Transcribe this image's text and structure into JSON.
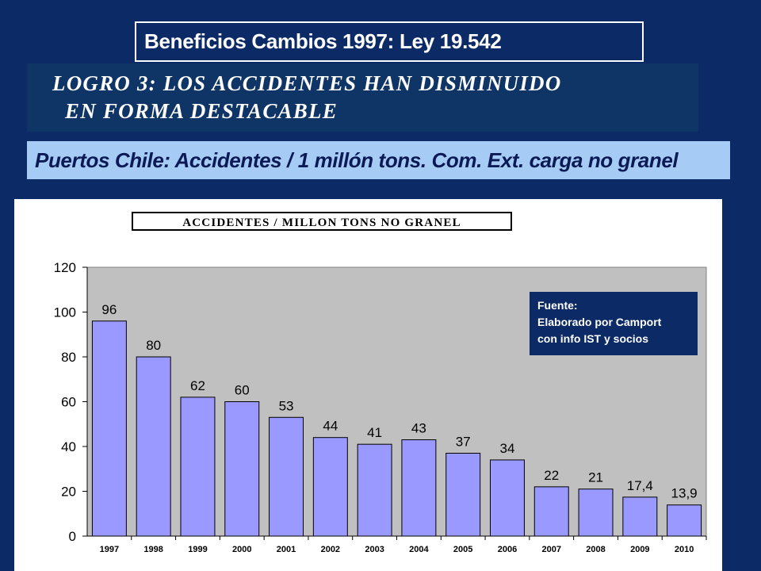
{
  "header": {
    "title": "Beneficios Cambios 1997:   Ley 19.542",
    "logro_line1": "LOGRO 3: LOS ACCIDENTES HAN DISMINUIDO",
    "logro_line2": "EN FORMA DESTACABLE",
    "subtitle": "Puertos Chile: Accidentes / 1 millón tons. Com.  Ext.  carga no granel"
  },
  "source_note": {
    "line1": "Fuente:",
    "line2": "Elaborado por Camport",
    "line3": "con info IST y socios"
  },
  "chart_data": {
    "type": "bar",
    "title": "ACCIDENTES / MILLON TONS NO GRANEL",
    "categories": [
      "1997",
      "1998",
      "1999",
      "2000",
      "2001",
      "2002",
      "2003",
      "2004",
      "2005",
      "2006",
      "2007",
      "2008",
      "2009",
      "2010"
    ],
    "values": [
      96,
      80,
      62,
      60,
      53,
      44,
      41,
      43,
      37,
      34,
      22,
      21,
      17.4,
      13.9
    ],
    "data_labels": [
      "96",
      "80",
      "62",
      "60",
      "53",
      "44",
      "41",
      "43",
      "37",
      "34",
      "22",
      "21",
      "17,4",
      "13,9"
    ],
    "yticks": [
      0,
      20,
      40,
      60,
      80,
      100,
      120
    ],
    "ylim": [
      0,
      120
    ],
    "grid": false,
    "colors": {
      "bar": "#9999ff",
      "plot_bg": "#c0c0c0",
      "bar_stroke": "#000000"
    }
  }
}
